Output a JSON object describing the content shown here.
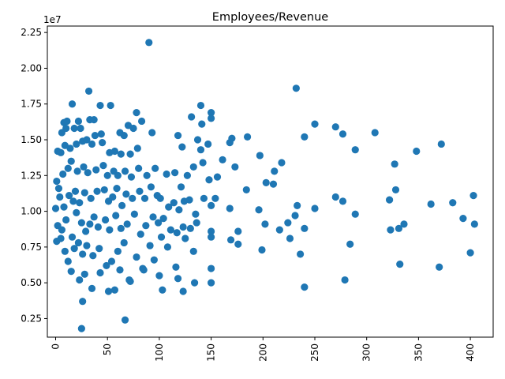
{
  "chart_data": {
    "type": "scatter",
    "title": "Employees/Revenue",
    "xlabel": "",
    "ylabel": "",
    "y_offset_label": "1e7",
    "xlim": [
      -8,
      422
    ],
    "ylim": [
      1200000,
      22950000
    ],
    "x_ticks": [
      0,
      50,
      100,
      150,
      200,
      250,
      300,
      350,
      400
    ],
    "x_tick_labels": [
      "0",
      "50",
      "100",
      "150",
      "200",
      "250",
      "300",
      "350",
      "400"
    ],
    "y_ticks": [
      2500000,
      5000000,
      7500000,
      10000000,
      12500000,
      15000000,
      17500000,
      20000000,
      22500000
    ],
    "y_tick_labels": [
      "0.25",
      "0.50",
      "0.75",
      "1.00",
      "1.25",
      "1.50",
      "1.75",
      "2.00",
      "2.25"
    ],
    "x_tick_rotation": 90,
    "grid": false,
    "marker_color": "#1f77b4",
    "series": [
      {
        "points": [
          [
            90,
            21800000
          ],
          [
            232,
            18600000
          ],
          [
            32,
            18400000
          ],
          [
            16,
            17500000
          ],
          [
            43,
            17400000
          ],
          [
            53,
            17400000
          ],
          [
            140,
            17400000
          ],
          [
            8,
            16200000
          ],
          [
            11,
            16300000
          ],
          [
            22,
            16300000
          ],
          [
            33,
            16400000
          ],
          [
            37,
            16400000
          ],
          [
            78,
            16900000
          ],
          [
            131,
            16600000
          ],
          [
            150,
            16900000
          ],
          [
            150,
            16500000
          ],
          [
            250,
            16100000
          ],
          [
            270,
            15900000
          ],
          [
            141,
            16100000
          ],
          [
            6,
            15500000
          ],
          [
            10,
            15800000
          ],
          [
            18,
            15800000
          ],
          [
            24,
            15800000
          ],
          [
            38,
            15300000
          ],
          [
            44,
            15400000
          ],
          [
            62,
            15500000
          ],
          [
            66,
            15300000
          ],
          [
            70,
            16000000
          ],
          [
            75,
            15800000
          ],
          [
            83,
            16300000
          ],
          [
            93,
            15500000
          ],
          [
            118,
            15300000
          ],
          [
            137,
            15000000
          ],
          [
            170,
            15100000
          ],
          [
            185,
            15200000
          ],
          [
            240,
            15200000
          ],
          [
            277,
            15400000
          ],
          [
            308,
            15500000
          ],
          [
            372,
            14700000
          ],
          [
            348,
            14200000
          ],
          [
            289,
            14300000
          ],
          [
            2,
            14200000
          ],
          [
            5,
            14100000
          ],
          [
            9,
            14600000
          ],
          [
            14,
            14400000
          ],
          [
            20,
            14700000
          ],
          [
            26,
            14900000
          ],
          [
            30,
            15000000
          ],
          [
            35,
            14700000
          ],
          [
            45,
            14800000
          ],
          [
            52,
            14100000
          ],
          [
            57,
            14200000
          ],
          [
            63,
            14000000
          ],
          [
            72,
            14000000
          ],
          [
            79,
            14400000
          ],
          [
            122,
            14500000
          ],
          [
            140,
            14300000
          ],
          [
            147,
            14700000
          ],
          [
            161,
            13600000
          ],
          [
            168,
            14800000
          ],
          [
            197,
            13900000
          ],
          [
            173,
            13100000
          ],
          [
            327,
            13300000
          ],
          [
            1,
            12100000
          ],
          [
            3,
            11600000
          ],
          [
            7,
            12600000
          ],
          [
            12,
            13000000
          ],
          [
            15,
            13500000
          ],
          [
            21,
            12800000
          ],
          [
            27,
            13100000
          ],
          [
            31,
            12700000
          ],
          [
            39,
            12900000
          ],
          [
            46,
            13200000
          ],
          [
            50,
            12500000
          ],
          [
            56,
            12800000
          ],
          [
            60,
            12500000
          ],
          [
            67,
            12800000
          ],
          [
            73,
            12400000
          ],
          [
            80,
            13000000
          ],
          [
            88,
            12500000
          ],
          [
            96,
            13000000
          ],
          [
            107,
            12600000
          ],
          [
            115,
            12700000
          ],
          [
            121,
            11700000
          ],
          [
            127,
            12500000
          ],
          [
            133,
            13100000
          ],
          [
            142,
            13400000
          ],
          [
            148,
            12200000
          ],
          [
            156,
            12400000
          ],
          [
            203,
            12000000
          ],
          [
            210,
            11900000
          ],
          [
            211,
            12800000
          ],
          [
            218,
            13400000
          ],
          [
            184,
            11500000
          ],
          [
            154,
            10900000
          ],
          [
            0,
            10200000
          ],
          [
            4,
            11000000
          ],
          [
            8,
            10300000
          ],
          [
            13,
            11100000
          ],
          [
            17,
            10700000
          ],
          [
            19,
            11400000
          ],
          [
            23,
            10600000
          ],
          [
            28,
            11300000
          ],
          [
            34,
            10900000
          ],
          [
            40,
            11400000
          ],
          [
            47,
            11500000
          ],
          [
            51,
            10700000
          ],
          [
            55,
            11000000
          ],
          [
            59,
            11600000
          ],
          [
            64,
            10400000
          ],
          [
            68,
            11200000
          ],
          [
            74,
            10900000
          ],
          [
            81,
            11400000
          ],
          [
            86,
            10900000
          ],
          [
            92,
            11700000
          ],
          [
            98,
            11100000
          ],
          [
            101,
            10900000
          ],
          [
            109,
            10300000
          ],
          [
            114,
            10600000
          ],
          [
            119,
            10100000
          ],
          [
            124,
            10700000
          ],
          [
            129,
            10800000
          ],
          [
            135,
            9800000
          ],
          [
            143,
            10900000
          ],
          [
            150,
            10400000
          ],
          [
            168,
            10200000
          ],
          [
            196,
            10100000
          ],
          [
            233,
            10400000
          ],
          [
            250,
            10200000
          ],
          [
            270,
            11000000
          ],
          [
            277,
            10700000
          ],
          [
            322,
            10800000
          ],
          [
            328,
            11500000
          ],
          [
            362,
            10500000
          ],
          [
            383,
            10600000
          ],
          [
            403,
            11100000
          ],
          [
            2,
            9000000
          ],
          [
            6,
            8700000
          ],
          [
            10,
            9400000
          ],
          [
            16,
            8200000
          ],
          [
            20,
            9900000
          ],
          [
            25,
            9200000
          ],
          [
            29,
            8600000
          ],
          [
            33,
            9100000
          ],
          [
            37,
            9600000
          ],
          [
            41,
            8900000
          ],
          [
            48,
            9400000
          ],
          [
            52,
            8700000
          ],
          [
            58,
            9700000
          ],
          [
            63,
            8800000
          ],
          [
            69,
            9100000
          ],
          [
            76,
            9800000
          ],
          [
            82,
            8400000
          ],
          [
            87,
            9000000
          ],
          [
            94,
            9600000
          ],
          [
            99,
            9200000
          ],
          [
            104,
            9500000
          ],
          [
            111,
            8700000
          ],
          [
            117,
            8500000
          ],
          [
            123,
            8900000
          ],
          [
            130,
            8800000
          ],
          [
            136,
            9200000
          ],
          [
            150,
            8600000
          ],
          [
            176,
            8600000
          ],
          [
            202,
            9100000
          ],
          [
            216,
            8700000
          ],
          [
            224,
            9200000
          ],
          [
            231,
            9700000
          ],
          [
            240,
            8800000
          ],
          [
            289,
            9800000
          ],
          [
            323,
            8700000
          ],
          [
            331,
            8800000
          ],
          [
            336,
            9100000
          ],
          [
            393,
            9500000
          ],
          [
            404,
            9100000
          ],
          [
            1,
            7900000
          ],
          [
            5,
            8100000
          ],
          [
            9,
            7200000
          ],
          [
            12,
            6500000
          ],
          [
            18,
            7400000
          ],
          [
            22,
            7800000
          ],
          [
            26,
            7000000
          ],
          [
            30,
            7600000
          ],
          [
            36,
            6900000
          ],
          [
            42,
            7400000
          ],
          [
            49,
            6200000
          ],
          [
            54,
            6500000
          ],
          [
            60,
            7200000
          ],
          [
            66,
            7800000
          ],
          [
            72,
            5100000
          ],
          [
            78,
            6800000
          ],
          [
            84,
            6000000
          ],
          [
            91,
            7600000
          ],
          [
            95,
            6600000
          ],
          [
            102,
            8200000
          ],
          [
            108,
            7500000
          ],
          [
            116,
            6100000
          ],
          [
            125,
            8100000
          ],
          [
            133,
            7200000
          ],
          [
            150,
            8200000
          ],
          [
            169,
            8000000
          ],
          [
            176,
            7700000
          ],
          [
            199,
            7300000
          ],
          [
            226,
            8100000
          ],
          [
            236,
            7000000
          ],
          [
            284,
            7700000
          ],
          [
            332,
            6300000
          ],
          [
            370,
            6100000
          ],
          [
            400,
            7100000
          ],
          [
            15,
            5800000
          ],
          [
            23,
            5200000
          ],
          [
            28,
            5600000
          ],
          [
            35,
            4600000
          ],
          [
            43,
            5700000
          ],
          [
            51,
            4400000
          ],
          [
            57,
            4500000
          ],
          [
            62,
            5900000
          ],
          [
            71,
            5200000
          ],
          [
            85,
            5900000
          ],
          [
            100,
            5500000
          ],
          [
            103,
            4500000
          ],
          [
            118,
            5300000
          ],
          [
            123,
            4400000
          ],
          [
            134,
            5000000
          ],
          [
            150,
            5000000
          ],
          [
            150,
            6000000
          ],
          [
            240,
            4700000
          ],
          [
            279,
            5200000
          ],
          [
            26,
            3700000
          ],
          [
            67,
            2400000
          ],
          [
            25,
            1800000
          ]
        ]
      }
    ]
  }
}
